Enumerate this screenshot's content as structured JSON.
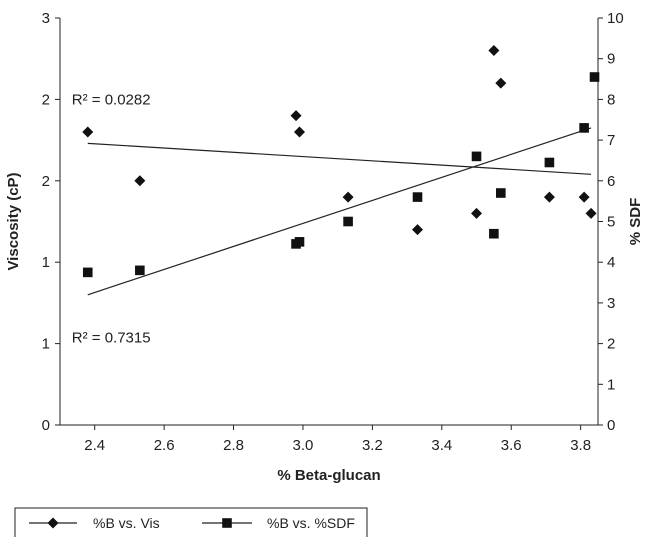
{
  "chart_data": {
    "type": "scatter",
    "xlabel": "% Beta-glucan",
    "ylabel_left": "Viscosity (cP)",
    "ylabel_right": "% SDF",
    "x_ticks": [
      "2.4",
      "2.6",
      "2.8",
      "3.0",
      "3.2",
      "3.4",
      "3.6",
      "3.8"
    ],
    "x_tick_values": [
      2.4,
      2.6,
      2.8,
      3.0,
      3.2,
      3.4,
      3.6,
      3.8
    ],
    "xlim": [
      2.3,
      3.85
    ],
    "y_left_ticks": [
      "0",
      "1",
      "1",
      "2",
      "2",
      "3"
    ],
    "y_left_tick_values": [
      0,
      0.5,
      1.0,
      1.5,
      2.0,
      2.5
    ],
    "y_left_lim": [
      0,
      2.5
    ],
    "y_right_ticks": [
      "0",
      "1",
      "2",
      "3",
      "4",
      "5",
      "6",
      "7",
      "8",
      "9",
      "10"
    ],
    "y_right_tick_values": [
      0,
      1,
      2,
      3,
      4,
      5,
      6,
      7,
      8,
      9,
      10
    ],
    "y_right_lim": [
      0,
      10
    ],
    "series": [
      {
        "name": "%B vs. Vis",
        "marker": "diamond",
        "axis": "left",
        "color": "#111111",
        "points": [
          [
            2.38,
            1.8
          ],
          [
            2.53,
            1.5
          ],
          [
            2.98,
            1.9
          ],
          [
            2.99,
            1.8
          ],
          [
            3.13,
            1.4
          ],
          [
            3.33,
            1.2
          ],
          [
            3.5,
            1.3
          ],
          [
            3.55,
            2.3
          ],
          [
            3.57,
            2.1
          ],
          [
            3.71,
            1.4
          ],
          [
            3.81,
            1.4
          ],
          [
            3.83,
            1.3
          ]
        ]
      },
      {
        "name": "%B vs. %SDF",
        "marker": "square",
        "axis": "right",
        "color": "#111111",
        "points": [
          [
            2.38,
            3.75
          ],
          [
            2.53,
            3.8
          ],
          [
            2.98,
            4.45
          ],
          [
            2.99,
            4.5
          ],
          [
            3.13,
            5.0
          ],
          [
            3.33,
            5.6
          ],
          [
            3.5,
            6.6
          ],
          [
            3.55,
            4.7
          ],
          [
            3.57,
            5.7
          ],
          [
            3.71,
            6.45
          ],
          [
            3.81,
            7.3
          ],
          [
            3.84,
            8.55
          ]
        ]
      }
    ],
    "trendlines": [
      {
        "axis": "left",
        "from": [
          2.38,
          1.73
        ],
        "to": [
          3.83,
          1.54
        ]
      },
      {
        "axis": "right",
        "from": [
          2.38,
          3.2
        ],
        "to": [
          3.83,
          7.3
        ]
      }
    ],
    "annotations": [
      {
        "label": "R² = 0.0282",
        "anchor": [
          2.38,
          2.0
        ],
        "axis": "left"
      },
      {
        "label": "R² = 0.7315",
        "anchor": [
          2.38,
          2.15
        ],
        "axis": "right"
      }
    ],
    "legend": {
      "position": "bottom-left",
      "entries": [
        "%B vs. Vis",
        "%B vs. %SDF"
      ]
    }
  }
}
